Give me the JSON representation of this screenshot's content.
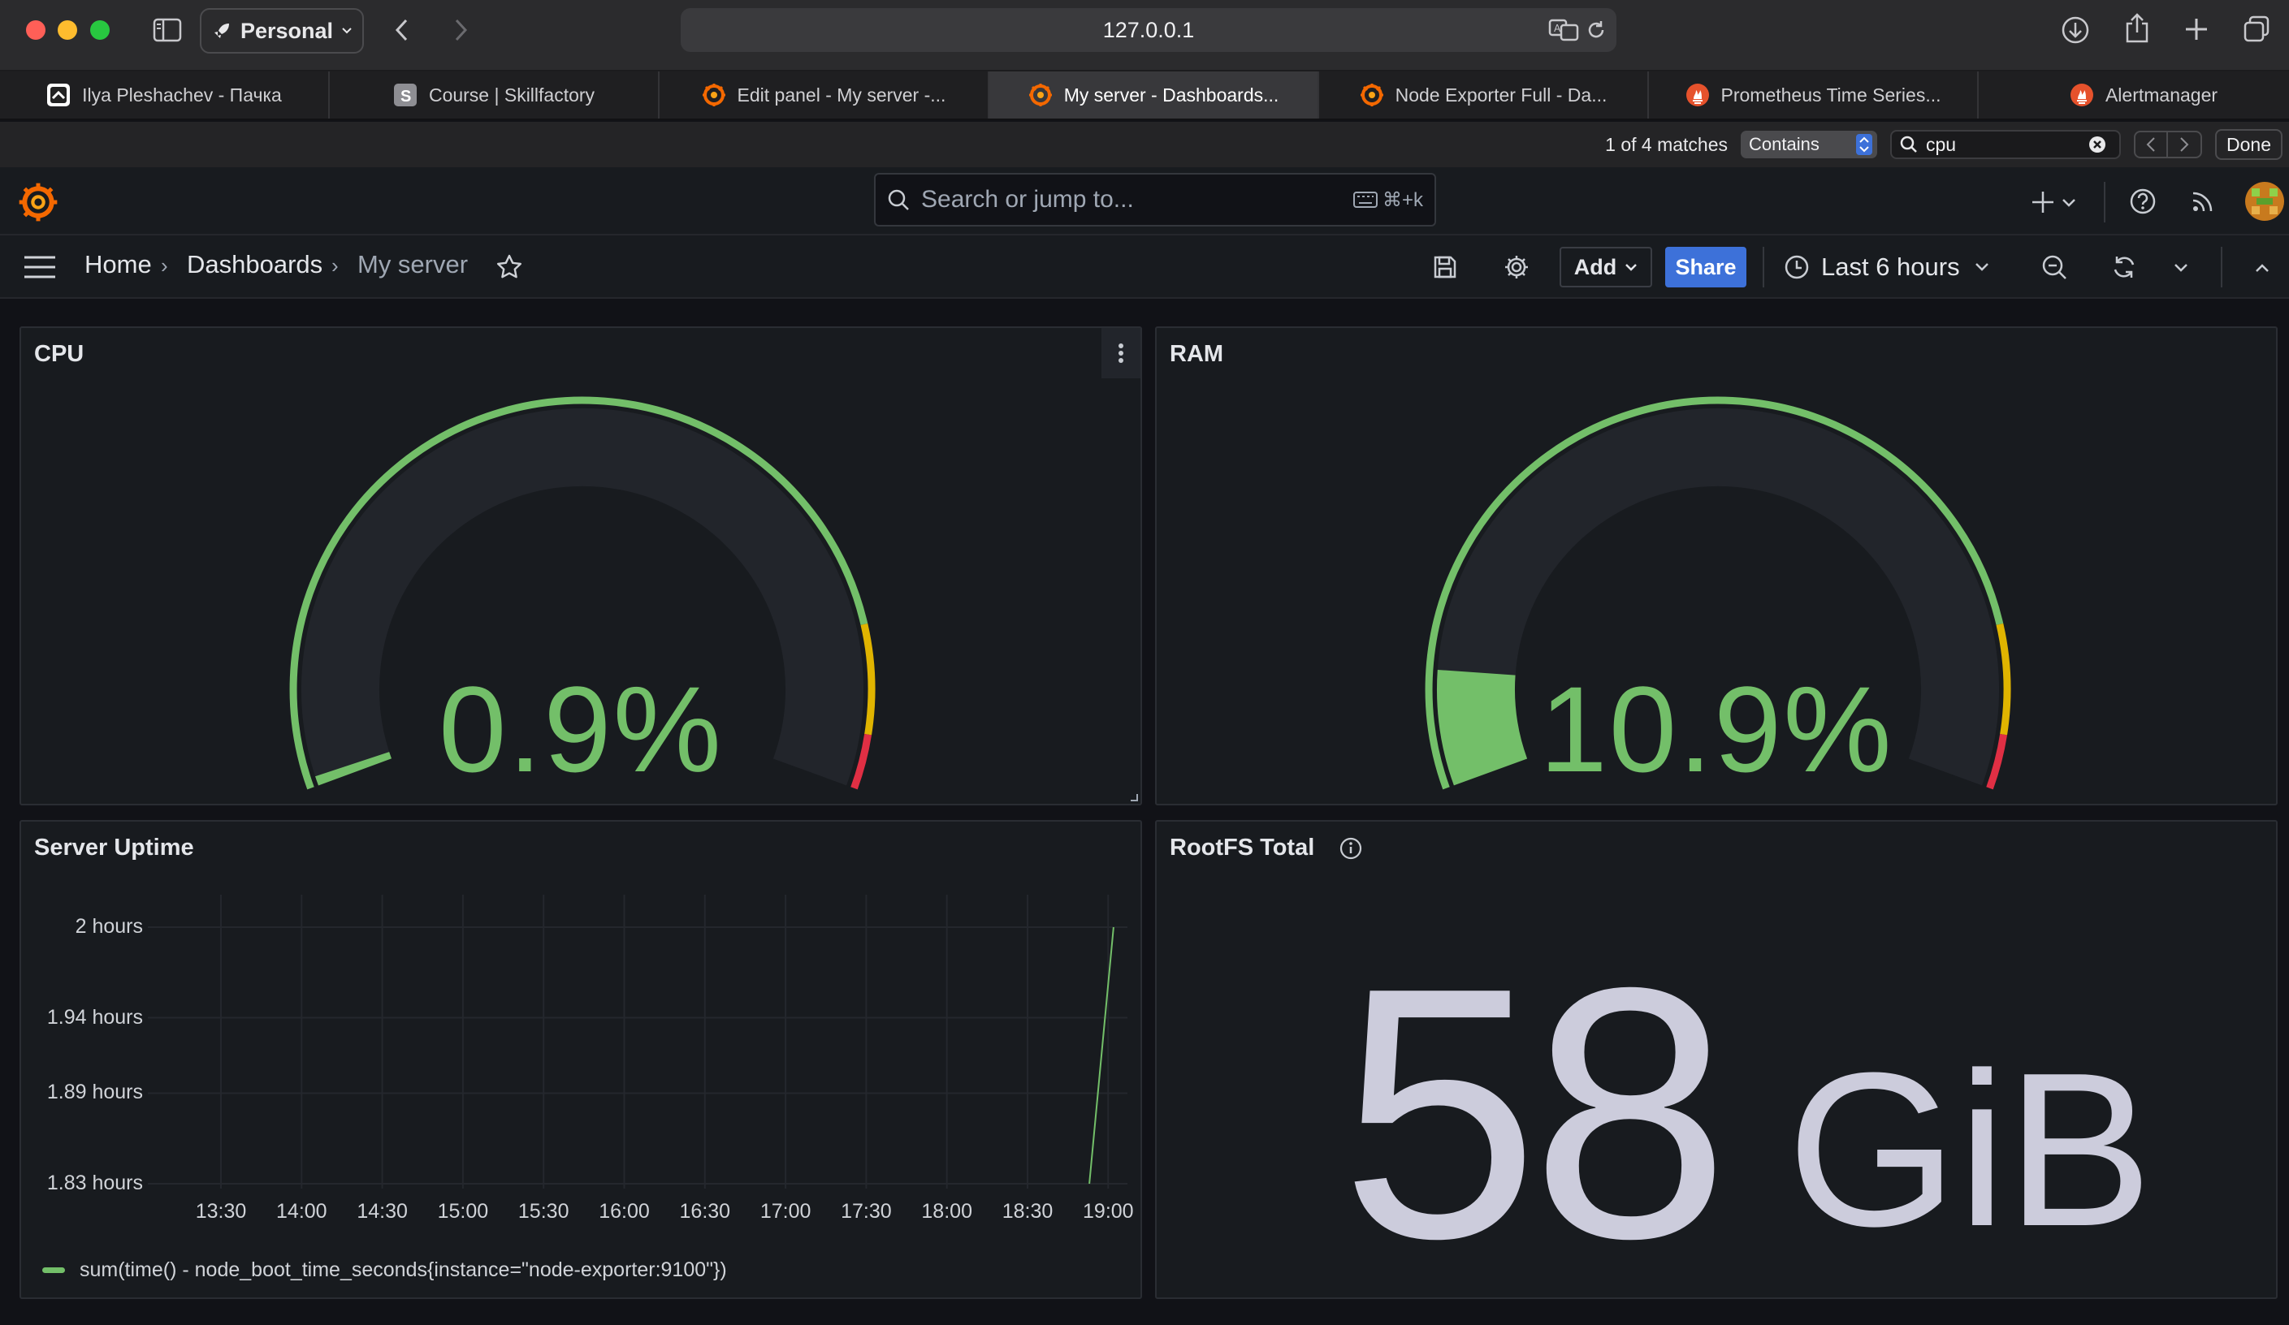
{
  "browser": {
    "profile": "Personal",
    "address": "127.0.0.1",
    "tabs": [
      {
        "label": "Ilya Pleshachev - Пачка",
        "icon": "pachka-icon"
      },
      {
        "label": "Course | Skillfactory",
        "icon": "skillfactory-icon"
      },
      {
        "label": "Edit panel - My server -...",
        "icon": "grafana-icon"
      },
      {
        "label": "My server - Dashboards...",
        "icon": "grafana-icon",
        "active": true
      },
      {
        "label": "Node Exporter Full - Da...",
        "icon": "grafana-icon"
      },
      {
        "label": "Prometheus Time Series...",
        "icon": "prometheus-icon"
      },
      {
        "label": "Alertmanager",
        "icon": "prometheus-icon"
      }
    ],
    "find": {
      "matches": "1 of 4 matches",
      "mode": "Contains",
      "query": "cpu",
      "done": "Done"
    }
  },
  "grafana": {
    "search_placeholder": "Search or jump to...",
    "search_shortcut": "⌘+k",
    "breadcrumb": {
      "home": "Home",
      "dashboards": "Dashboards",
      "current": "My server"
    },
    "toolbar": {
      "add": "Add",
      "share": "Share",
      "time_range": "Last 6 hours"
    },
    "colors": {
      "accent": "#3d71d9",
      "green": "#73bf69",
      "yellow": "#e0b400",
      "red": "#e02f44"
    }
  },
  "panels": {
    "cpu": {
      "title": "CPU",
      "value": "0.9%",
      "fraction": 0.009
    },
    "ram": {
      "title": "RAM",
      "value": "10.9%",
      "fraction": 0.109
    },
    "uptime": {
      "title": "Server Uptime"
    },
    "rootfs": {
      "title": "RootFS Total",
      "value": "58",
      "unit": "GiB"
    }
  },
  "chart_data": {
    "type": "line",
    "title": "Server Uptime",
    "y_ticks": [
      "2 hours",
      "1.94 hours",
      "1.89 hours",
      "1.83 hours"
    ],
    "x_ticks": [
      "13:30",
      "14:00",
      "14:30",
      "15:00",
      "15:30",
      "16:00",
      "16:30",
      "17:00",
      "17:30",
      "18:00",
      "18:30",
      "19:00"
    ],
    "ylim": [
      1.83,
      2.0
    ],
    "series": [
      {
        "name": "sum(time() - node_boot_time_seconds{instance=\"node-exporter:9100\"})",
        "x": [
          "18:53",
          "19:02"
        ],
        "y": [
          1.83,
          2.0
        ]
      }
    ],
    "legend": "bottom"
  }
}
